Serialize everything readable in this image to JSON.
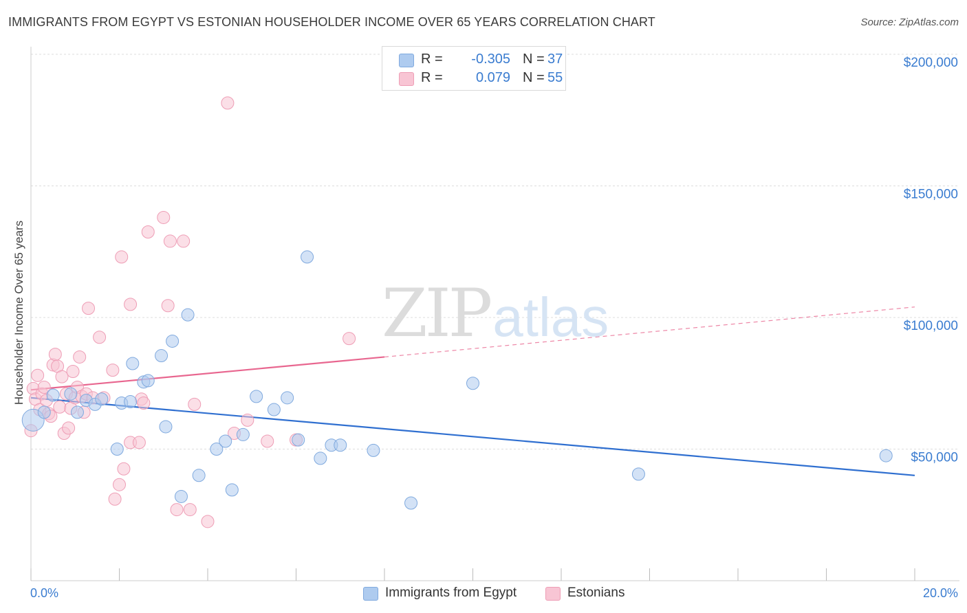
{
  "title": "IMMIGRANTS FROM EGYPT VS ESTONIAN HOUSEHOLDER INCOME OVER 65 YEARS CORRELATION CHART",
  "source": "Source: ZipAtlas.com",
  "watermark": {
    "zip": "ZIP",
    "atlas": "atlas"
  },
  "legend": {
    "r_label": "R =",
    "n_label": "N =",
    "rows": [
      {
        "r": "-0.305",
        "n": "37",
        "color": "#aecbef",
        "border": "#7fa9de"
      },
      {
        "r": "0.079",
        "n": "55",
        "color": "#f8c5d4",
        "border": "#ee9db5"
      }
    ]
  },
  "bottom_legend": [
    "Immigrants from Egypt",
    "Estonians"
  ],
  "colors": {
    "egypt_fill": "#aecbef",
    "egypt_stroke": "#7fa9de",
    "egypt_line": "#2f6fd0",
    "eston_fill": "#f8c5d4",
    "eston_stroke": "#ee9db5",
    "eston_line": "#e8668f",
    "axis_text": "#3a7cd0",
    "grid": "#dddddd"
  },
  "chart_data": {
    "type": "scatter",
    "title": "IMMIGRANTS FROM EGYPT VS ESTONIAN HOUSEHOLDER INCOME OVER 65 YEARS CORRELATION CHART",
    "xlabel": "",
    "ylabel": "Householder Income Over 65 years",
    "xlim": [
      0,
      20
    ],
    "ylim": [
      0,
      200000
    ],
    "x_tick_labels": [
      "0.0%",
      "20.0%"
    ],
    "y_ticks": [
      50000,
      100000,
      150000,
      200000
    ],
    "y_tick_labels": [
      "$50,000",
      "$100,000",
      "$150,000",
      "$200,000"
    ],
    "grid": true,
    "legend_position": "top-center",
    "series": [
      {
        "name": "Immigrants from Egypt",
        "r": -0.305,
        "n": 37,
        "trend": {
          "x": [
            0,
            20
          ],
          "y": [
            69500,
            40000
          ]
        },
        "points": [
          [
            0.05,
            61000
          ],
          [
            0.3,
            64000
          ],
          [
            0.5,
            70500
          ],
          [
            0.9,
            71000
          ],
          [
            1.05,
            64000
          ],
          [
            1.25,
            68500
          ],
          [
            1.45,
            67000
          ],
          [
            1.6,
            69000
          ],
          [
            1.95,
            50000
          ],
          [
            2.05,
            67500
          ],
          [
            2.25,
            68000
          ],
          [
            2.3,
            82500
          ],
          [
            2.55,
            75500
          ],
          [
            2.65,
            76000
          ],
          [
            2.95,
            85500
          ],
          [
            3.05,
            58500
          ],
          [
            3.2,
            91000
          ],
          [
            3.4,
            32000
          ],
          [
            3.55,
            101000
          ],
          [
            3.8,
            40000
          ],
          [
            4.2,
            50000
          ],
          [
            4.4,
            53000
          ],
          [
            4.55,
            34500
          ],
          [
            4.8,
            55500
          ],
          [
            5.1,
            70000
          ],
          [
            5.5,
            65000
          ],
          [
            5.8,
            69500
          ],
          [
            6.05,
            53500
          ],
          [
            6.25,
            123000
          ],
          [
            6.55,
            46500
          ],
          [
            6.8,
            51500
          ],
          [
            7.0,
            51500
          ],
          [
            7.75,
            49500
          ],
          [
            8.6,
            29500
          ],
          [
            10.0,
            75000
          ],
          [
            13.75,
            40500
          ],
          [
            19.35,
            47500
          ]
        ]
      },
      {
        "name": "Estonians",
        "r": 0.079,
        "n": 55,
        "trend": {
          "x": [
            0,
            8
          ],
          "y": [
            72500,
            85000
          ]
        },
        "trend_dashed": {
          "x": [
            8,
            20
          ],
          "y": [
            85000,
            104000
          ]
        },
        "points": [
          [
            0.0,
            57000
          ],
          [
            0.05,
            73000
          ],
          [
            0.1,
            69000
          ],
          [
            0.15,
            78000
          ],
          [
            0.2,
            65000
          ],
          [
            0.25,
            71000
          ],
          [
            0.3,
            73500
          ],
          [
            0.35,
            68500
          ],
          [
            0.4,
            63500
          ],
          [
            0.45,
            62500
          ],
          [
            0.5,
            82000
          ],
          [
            0.55,
            86000
          ],
          [
            0.6,
            81500
          ],
          [
            0.65,
            66000
          ],
          [
            0.7,
            77500
          ],
          [
            0.75,
            56000
          ],
          [
            0.8,
            71000
          ],
          [
            0.85,
            58000
          ],
          [
            0.9,
            65500
          ],
          [
            0.95,
            79500
          ],
          [
            1.0,
            69500
          ],
          [
            1.05,
            73500
          ],
          [
            1.1,
            85000
          ],
          [
            1.15,
            70000
          ],
          [
            1.2,
            64000
          ],
          [
            1.25,
            71000
          ],
          [
            1.3,
            103500
          ],
          [
            1.4,
            69500
          ],
          [
            1.55,
            92500
          ],
          [
            1.65,
            69500
          ],
          [
            1.85,
            80000
          ],
          [
            1.9,
            31000
          ],
          [
            2.0,
            36500
          ],
          [
            2.05,
            123000
          ],
          [
            2.1,
            42500
          ],
          [
            2.25,
            105000
          ],
          [
            2.25,
            52500
          ],
          [
            2.45,
            52500
          ],
          [
            2.5,
            69000
          ],
          [
            2.55,
            67500
          ],
          [
            2.65,
            132500
          ],
          [
            3.0,
            138000
          ],
          [
            3.1,
            104500
          ],
          [
            3.15,
            129000
          ],
          [
            3.3,
            27000
          ],
          [
            3.45,
            129000
          ],
          [
            3.6,
            27000
          ],
          [
            3.7,
            67000
          ],
          [
            4.0,
            22500
          ],
          [
            4.45,
            181500
          ],
          [
            4.6,
            56000
          ],
          [
            4.9,
            61000
          ],
          [
            5.35,
            53000
          ],
          [
            6.0,
            53500
          ],
          [
            7.2,
            92000
          ]
        ]
      }
    ]
  }
}
